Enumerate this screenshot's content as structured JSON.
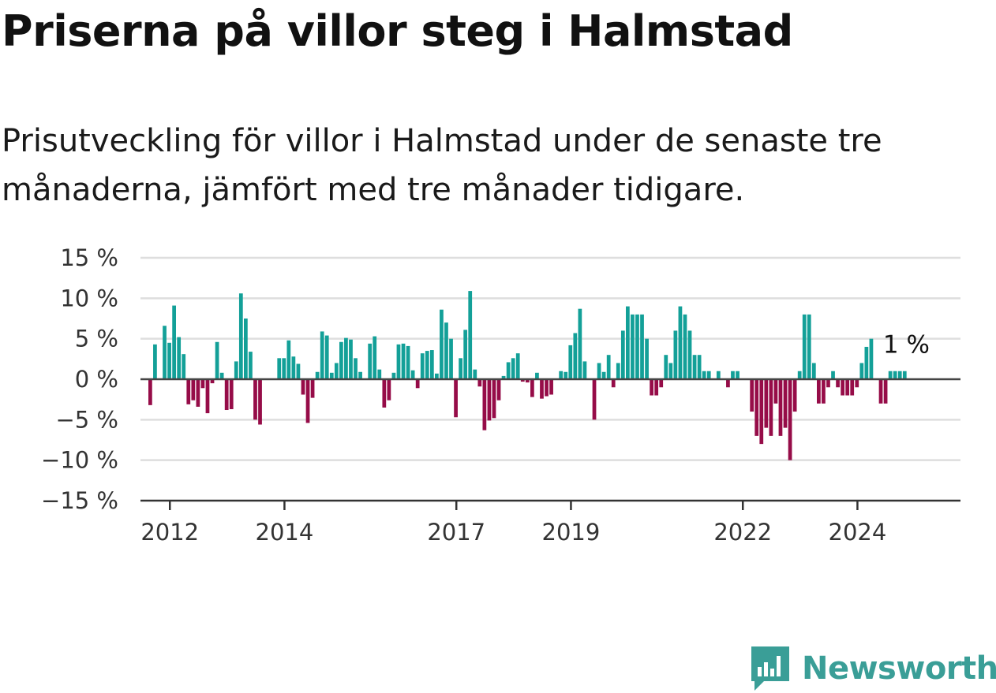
{
  "title": "Priserna på villor steg i Halmstad",
  "subtitle": "Prisutveckling för villor i Halmstad under de senaste tre månaderna, jämfört med tre månader tidigare.",
  "brand": {
    "name": "Newsworthy",
    "icon": "newsworthy-logo-icon",
    "color": "#3a9e97"
  },
  "chart_data": {
    "type": "bar",
    "x_start": "2011-09",
    "x_interval": "month",
    "x_tick_labels": [
      "2012",
      "2014",
      "2017",
      "2019",
      "2022",
      "2024"
    ],
    "y_tick_labels": [
      "15 %",
      "10 %",
      "5 %",
      "0 %",
      "−5 %",
      "−10 %",
      "−15 %"
    ],
    "ylim": [
      -15,
      15
    ],
    "y_ticks": [
      15,
      10,
      5,
      0,
      -5,
      -10,
      -15
    ],
    "grid": true,
    "positive_color": "#13a098",
    "negative_color": "#960c48",
    "end_label": "1 %",
    "values": [
      -3.2,
      4.3,
      0,
      6.6,
      4.5,
      9.1,
      5.2,
      3.1,
      -3.1,
      -2.6,
      -3.4,
      -1.1,
      -4.2,
      -0.5,
      4.6,
      0.8,
      -3.8,
      -3.7,
      2.2,
      10.6,
      7.5,
      3.4,
      -5,
      -5.6,
      0,
      0,
      0,
      2.6,
      2.6,
      4.8,
      2.8,
      1.9,
      -1.9,
      -5.4,
      -2.3,
      0.9,
      5.9,
      5.4,
      0.8,
      2,
      4.6,
      5.1,
      4.9,
      2.6,
      0.9,
      0,
      4.4,
      5.3,
      1.2,
      -3.5,
      -2.6,
      0.8,
      4.3,
      4.4,
      4.1,
      1.1,
      -1.1,
      3.2,
      3.5,
      3.6,
      0.7,
      8.6,
      7,
      5,
      -4.7,
      2.6,
      6.1,
      10.9,
      1.2,
      -0.9,
      -6.3,
      -5.1,
      -4.8,
      -2.6,
      0.4,
      2.1,
      2.6,
      3.2,
      -0.3,
      -0.4,
      -2.2,
      0.8,
      -2.4,
      -2.1,
      -1.9,
      0,
      1,
      0.9,
      4.2,
      5.7,
      8.7,
      2.2,
      0,
      -5,
      2,
      0.9,
      3,
      -1,
      2,
      6,
      9,
      8,
      8,
      8,
      5,
      -2,
      -2,
      -1,
      3,
      2,
      6,
      9,
      8,
      6,
      3,
      3,
      1,
      1,
      0,
      1,
      0,
      -1,
      1,
      1,
      0,
      0,
      -4,
      -7,
      -8,
      -6,
      -7,
      -3,
      -7,
      -6,
      -10,
      -4,
      1,
      8,
      8,
      2,
      -3,
      -3,
      -1,
      1,
      -1,
      -2,
      -2,
      -2,
      -1,
      2,
      4,
      5,
      0,
      -3,
      -3,
      1,
      1,
      1,
      1
    ]
  }
}
